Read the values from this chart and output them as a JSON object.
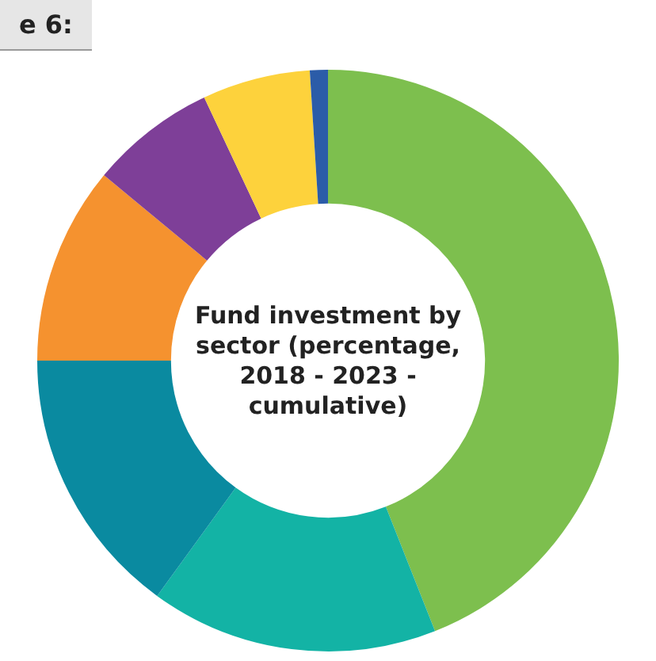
{
  "chart_data": {
    "type": "donut",
    "title": "Fund investment by sector (percentage, 2018 - 2023 - cumulative)",
    "categories": [
      null,
      null,
      null,
      null,
      null,
      null,
      null
    ],
    "values": [
      44,
      16,
      15,
      11,
      7,
      6,
      1
    ],
    "colors": [
      "#7dbf4e",
      "#13b3a5",
      "#0a8aa0",
      "#f5922f",
      "#7e3f98",
      "#fdd23c",
      "#2b5ca8"
    ],
    "annotations": [
      "e 6:"
    ]
  }
}
